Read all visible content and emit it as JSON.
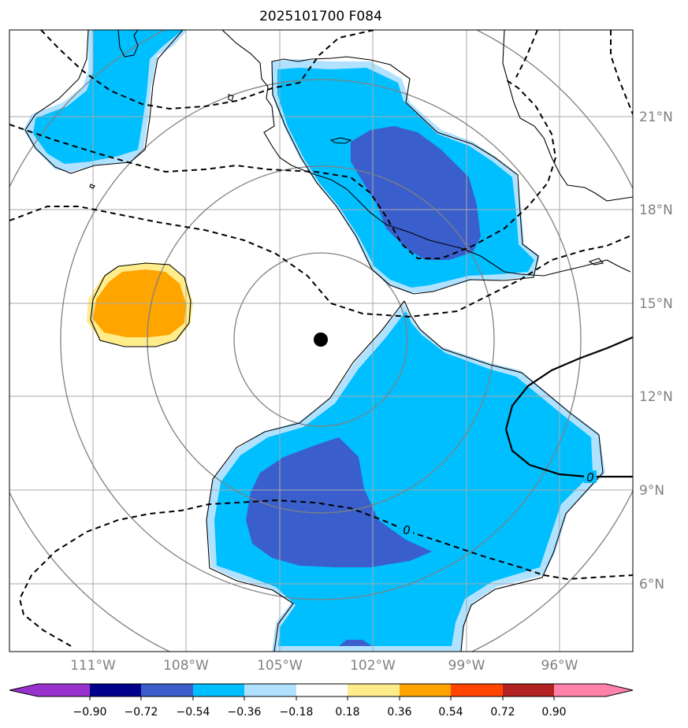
{
  "title": "2025101700 F084",
  "map": {
    "lat_labels": [
      "21°N",
      "18°N",
      "15°N",
      "12°N",
      "9°N",
      "6°N"
    ],
    "lon_labels": [
      "111°W",
      "108°W",
      "105°W",
      "102°W",
      "99°W",
      "96°W"
    ],
    "contour_labels": [
      "0",
      "0"
    ],
    "center_marker": "storm-center"
  },
  "colorbar": {
    "labels": [
      "−0.90",
      "−0.72",
      "−0.54",
      "−0.36",
      "−0.18",
      "0.18",
      "0.36",
      "0.54",
      "0.72",
      "0.90"
    ],
    "colors": [
      "#9932cc",
      "#00008b",
      "#3a5fcd",
      "#00bfff",
      "#b0e2ff",
      "#ffffff",
      "#ffec8b",
      "#ffa500",
      "#ff4500",
      "#b22222",
      "#ff82ab"
    ]
  }
}
